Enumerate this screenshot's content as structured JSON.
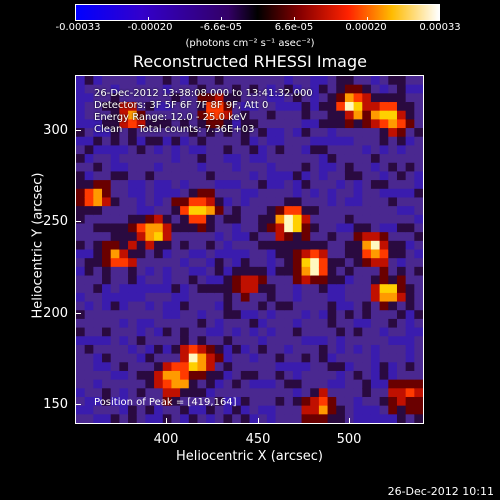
{
  "colorbar": {
    "ticks": [
      "-0.00033",
      "-0.00020",
      "-6.6e-05",
      "6.6e-05",
      "0.00020",
      "0.00033"
    ],
    "unit": "(photons cm⁻² s⁻¹ asec⁻²)"
  },
  "plot": {
    "title": "Reconstructed RHESSI Image",
    "info": [
      "26-Dec-2012 13:38:08.000 to 13:41:32.000",
      "Detectors: 3F 5F 6F 7F 8F 9F, Att 0",
      "Energy Range: 12.0 - 25.0 keV",
      "Clean     Total counts: 7.36E+03"
    ],
    "peak": "Position of Peak = [419,164]",
    "xlabel": "Heliocentric X (arcsec)",
    "ylabel": "Heliocentric Y (arcsec)",
    "xticks": [
      "400",
      "450",
      "500"
    ],
    "yticks": [
      "300",
      "250",
      "200",
      "150"
    ]
  },
  "footer": "26-Dec-2012 10:11",
  "colors": {
    "low": "#0000ff",
    "mid": "#ff0000",
    "high": "#ffffff"
  }
}
